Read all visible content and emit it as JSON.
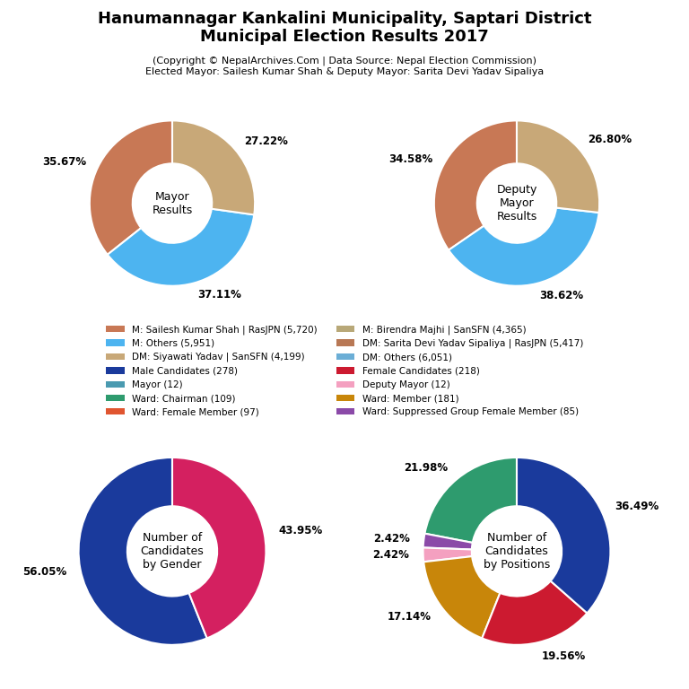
{
  "title": "Hanumannagar Kankalini Municipality, Saptari District\nMunicipal Election Results 2017",
  "subtitle": "(Copyright © NepalArchives.Com | Data Source: Nepal Election Commission)\nElected Mayor: Sailesh Kumar Shah & Deputy Mayor: Sarita Devi Yadav Sipaliya",
  "legend": "center",
  "series": [
    {
      "name": "M: Sailesh Kumar Shah | RasJPN (5,720)",
      "color": "#c87855"
    },
    {
      "name": "M: Others (5,951)",
      "color": "#4db4f0"
    },
    {
      "name": "DM: Siyawati Yadav | SanSFN (4,199)",
      "color": "#c8a878"
    },
    {
      "name": "Male Candidates (278)",
      "color": "#1a3a9c"
    },
    {
      "name": "Mayor (12)",
      "color": "#4a9ab0"
    },
    {
      "name": "Ward: Chairman (109)",
      "color": "#2e9b6e"
    },
    {
      "name": "Ward: Female Member (97)",
      "color": "#e05530"
    },
    {
      "name": "M: Birendra Majhi | SanSFN (4,365)",
      "color": "#b8a878"
    },
    {
      "name": "DM: Sarita Devi Yadav Sipaliya | RasJPN (5,417)",
      "color": "#b87855"
    },
    {
      "name": "DM: Others (6,051)",
      "color": "#6baed6"
    },
    {
      "name": "Female Candidates (218)",
      "color": "#cc1a30"
    },
    {
      "name": "Deputy Mayor (12)",
      "color": "#f4a0c0"
    },
    {
      "name": "Ward: Member (181)",
      "color": "#c8860a"
    },
    {
      "name": "Ward: Suppressed Group Female Member (85)",
      "color": "#8b4aa8"
    }
  ],
  "chart_data": [
    {
      "type": "pie",
      "title": "Mayor\nResults",
      "values": [
        35.67,
        37.11,
        27.22
      ],
      "value_labels": [
        "35.67%",
        "37.11%",
        "27.22%"
      ],
      "colors": [
        "#c87855",
        "#4db4f0",
        "#c8a878"
      ],
      "data_labels": true
    },
    {
      "type": "pie",
      "title": "Deputy\nMayor\nResults",
      "values": [
        34.58,
        38.62,
        26.8
      ],
      "value_labels": [
        "34.58%",
        "38.62%",
        "26.80%"
      ],
      "colors": [
        "#c87855",
        "#4db4f0",
        "#c8a878"
      ],
      "data_labels": true
    },
    {
      "type": "pie",
      "title": "Number of\nCandidates\nby Gender",
      "values": [
        56.05,
        43.95
      ],
      "value_labels": [
        "56.05%",
        "43.95%"
      ],
      "colors": [
        "#1a3a9c",
        "#d42060"
      ],
      "data_labels": true
    },
    {
      "type": "pie",
      "title": "Number of\nCandidates\nby Positions",
      "values": [
        21.98,
        2.42,
        2.42,
        17.14,
        19.56,
        36.49
      ],
      "value_labels": [
        "21.98%",
        "2.42%",
        "2.42%",
        "17.14%",
        "19.56%",
        "36.49%"
      ],
      "colors": [
        "#2e9b6e",
        "#8b4aa8",
        "#f4a0c0",
        "#c8860a",
        "#cc1a30",
        "#1a3a9c"
      ],
      "data_labels": true
    }
  ]
}
